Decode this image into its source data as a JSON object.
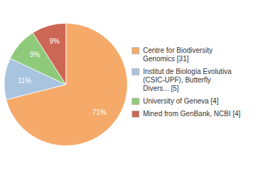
{
  "chart_data": {
    "type": "pie",
    "categories": [
      "Centre for Biodiversity\nGenomics [31]",
      "Institut de Biologia Evolutiva\n(CSIC-UPF), Butterfly\nDivers... [5]",
      "University of Geneva [4]",
      "Mined from GenBank, NCBI [4]"
    ],
    "values": [
      71,
      11,
      9,
      9
    ],
    "value_labels": [
      "71%",
      "11%",
      "9%",
      "9%"
    ],
    "colors": [
      "#f5aa6a",
      "#a8c4df",
      "#8fca7a",
      "#cc6655"
    ],
    "data_labels": true,
    "legend": "right"
  }
}
